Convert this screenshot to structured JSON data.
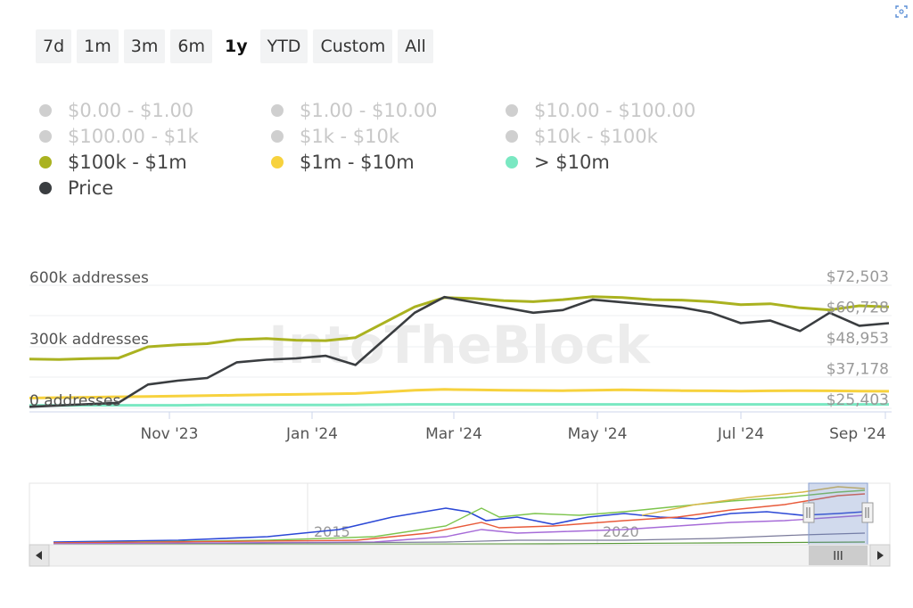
{
  "range_buttons": [
    {
      "label": "7d",
      "active": false
    },
    {
      "label": "1m",
      "active": false
    },
    {
      "label": "3m",
      "active": false
    },
    {
      "label": "6m",
      "active": false
    },
    {
      "label": "1y",
      "active": true
    },
    {
      "label": "YTD",
      "active": false
    },
    {
      "label": "Custom",
      "active": false
    },
    {
      "label": "All",
      "active": false
    }
  ],
  "legend": [
    {
      "label": "$0.00 - $1.00",
      "color": "#cfcfcf",
      "enabled": false
    },
    {
      "label": "$1.00 - $10.00",
      "color": "#cfcfcf",
      "enabled": false
    },
    {
      "label": "$10.00 - $100.00",
      "color": "#cfcfcf",
      "enabled": false
    },
    {
      "label": "$100.00 - $1k",
      "color": "#cfcfcf",
      "enabled": false
    },
    {
      "label": "$1k - $10k",
      "color": "#cfcfcf",
      "enabled": false
    },
    {
      "label": "$10k - $100k",
      "color": "#cfcfcf",
      "enabled": false
    },
    {
      "label": "$100k - $1m",
      "color": "#aab220",
      "enabled": true
    },
    {
      "label": "$1m - $10m",
      "color": "#f7d23e",
      "enabled": true
    },
    {
      "label": "> $10m",
      "color": "#7ae8c2",
      "enabled": true
    },
    {
      "label": "Price",
      "color": "#3a3d40",
      "enabled": true
    }
  ],
  "watermark": "IntoTheBlock",
  "chart_data": {
    "type": "line",
    "left_axis": {
      "ticks": [
        "600k addresses",
        "300k addresses",
        "0 addresses"
      ],
      "values": [
        600000,
        300000,
        0
      ],
      "range": [
        0,
        600000
      ]
    },
    "right_axis": {
      "ticks": [
        "$72,503",
        "$60,728",
        "$48,953",
        "$37,178",
        "$25,403"
      ],
      "values": [
        72503,
        60728,
        48953,
        37178,
        25403
      ],
      "range": [
        25403,
        72503
      ]
    },
    "x_ticks": [
      "Nov '23",
      "Jan '24",
      "Mar '24",
      "May '24",
      "Jul '24",
      "Sep '24"
    ],
    "x_range": [
      "2023-09",
      "2024-09"
    ],
    "series": [
      {
        "name": "$100k - $1m",
        "color": "#aab220",
        "axis": "addresses",
        "values": [
          240000,
          238000,
          242000,
          245000,
          300000,
          310000,
          315000,
          335000,
          340000,
          332000,
          330000,
          345000,
          420000,
          495000,
          540000,
          535000,
          525000,
          520000,
          530000,
          545000,
          540000,
          530000,
          528000,
          520000,
          505000,
          510000,
          490000,
          480000,
          500000,
          495000
        ]
      },
      {
        "name": "$1m - $10m",
        "color": "#f7d23e",
        "axis": "addresses",
        "values": [
          50000,
          52000,
          54000,
          56000,
          58000,
          60000,
          62000,
          64000,
          66000,
          68000,
          70000,
          72000,
          80000,
          88000,
          92000,
          90000,
          88000,
          87000,
          86000,
          88000,
          90000,
          88000,
          86000,
          85000,
          84000,
          85000,
          86000,
          85000,
          84000,
          83000
        ]
      },
      {
        "name": "> $10m",
        "color": "#7ae8c2",
        "axis": "addresses",
        "values": [
          14000,
          14000,
          15000,
          15000,
          15000,
          15000,
          16000,
          16000,
          16000,
          16000,
          16000,
          17000,
          18000,
          19000,
          19000,
          19000,
          19000,
          19000,
          19000,
          19000,
          19000,
          19000,
          19000,
          19000,
          19000,
          19000,
          19000,
          19000,
          19000,
          19000
        ]
      },
      {
        "name": "Price",
        "color": "#3a3d40",
        "axis": "price",
        "values": [
          26000,
          26500,
          27000,
          27500,
          34500,
          36000,
          37000,
          43000,
          44000,
          44500,
          45500,
          42000,
          52000,
          62000,
          68000,
          66000,
          64000,
          62000,
          63000,
          67000,
          66000,
          65000,
          64000,
          62000,
          58000,
          59000,
          55000,
          62000,
          57000,
          58000
        ]
      }
    ]
  },
  "navigator": {
    "year_labels": [
      "2015",
      "2020"
    ],
    "scroll_handle": "III"
  }
}
